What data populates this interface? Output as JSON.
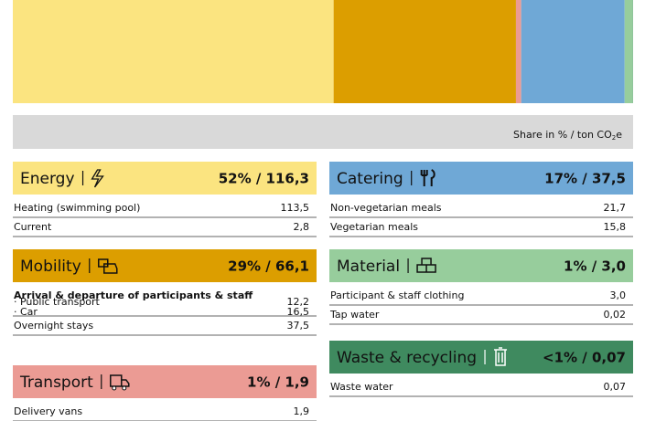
{
  "chart_data": {
    "type": "stacked-bar",
    "unit_label": {
      "text": "Share in % / ton CO",
      "sub": "2",
      "tail": "e"
    },
    "series": [
      {
        "name": "Energy",
        "color": "#fbe480",
        "values": [
          116.3
        ],
        "value_labels": [
          "52% / 116,3"
        ]
      },
      {
        "name": "Mobility",
        "color": "#dc9e00",
        "values": [
          66.1
        ],
        "value_labels": [
          "29% / 66,1"
        ]
      },
      {
        "name": "Transport",
        "color": "#eb9b94",
        "values": [
          1.9
        ],
        "value_labels": [
          "1% / 1,9"
        ]
      },
      {
        "name": "Catering",
        "color": "#6fa8d6",
        "values": [
          37.5
        ],
        "value_labels": [
          "17% / 37,5"
        ]
      },
      {
        "name": "Material",
        "color": "#97cd9c",
        "values": [
          3.0
        ],
        "value_labels": [
          "1% / 3,0"
        ]
      },
      {
        "name": "Waste & recycling",
        "color": "#3f8a5f",
        "values": [
          0.07
        ],
        "value_labels": [
          "<1% / 0,07"
        ]
      }
    ]
  },
  "cards": [
    {
      "items": [
        {
          "label": "Heating (swimming pool)",
          "value": "113,5"
        },
        {
          "label": "Current",
          "value": "2,8"
        }
      ]
    },
    {
      "items": [
        {
          "heading": "Arrival & departure of participants & staff",
          "items": [
            {
              "label": "· Public transport",
              "value": "12,2"
            },
            {
              "label": "· Car",
              "value": "16,5"
            }
          ]
        },
        {
          "label": "Overnight stays",
          "value": "37,5"
        }
      ]
    },
    {
      "items": [
        {
          "label": "Delivery vans",
          "value": "1,9"
        }
      ]
    },
    {
      "items": [
        {
          "label": "Non-vegetarian meals",
          "value": "21,7"
        },
        {
          "label": "Vegetarian meals",
          "value": "15,8"
        }
      ]
    },
    {
      "items": [
        {
          "label": "Participant & staff clothing",
          "value": "3,0"
        },
        {
          "label": "Tap water",
          "value": "0,02"
        }
      ]
    },
    {
      "items": [
        {
          "label": "Waste water",
          "value": "0,07"
        }
      ]
    }
  ]
}
